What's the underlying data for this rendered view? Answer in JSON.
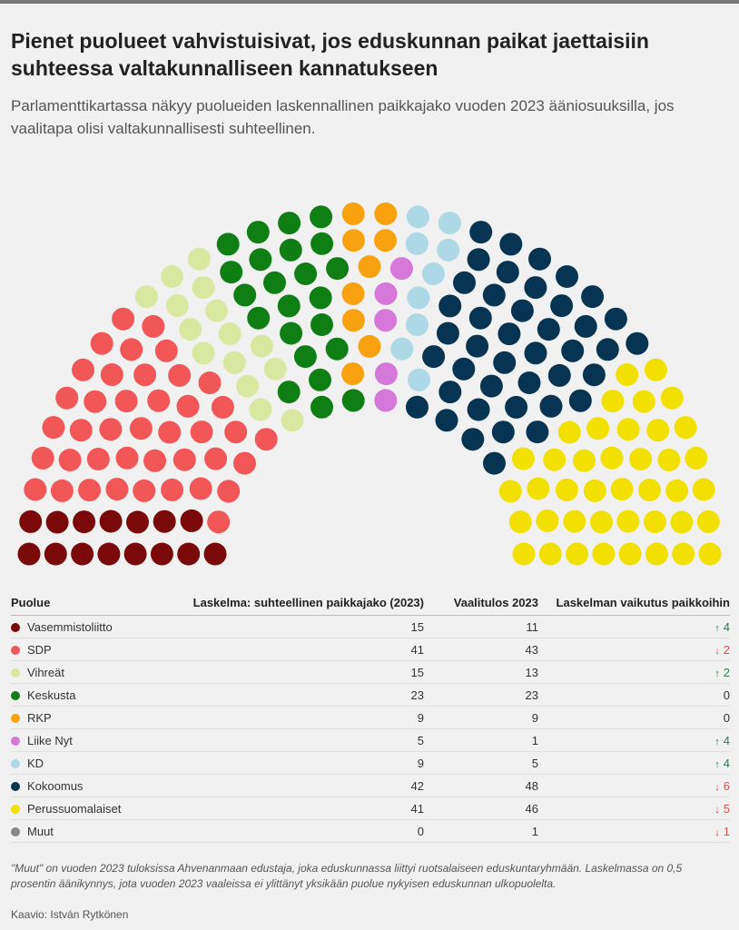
{
  "title": "Pienet puolueet vahvistuisivat, jos eduskunnan paikat jaettaisiin suhteessa valtakunnalliseen kannatukseen",
  "subtitle": "Parlamenttikartassa näkyy puolueiden laskennallinen paikkajako vuoden 2023 ääniosuuksilla, jos vaalitapa olisi valtakunnallisesti suhteellinen.",
  "table": {
    "headers": {
      "party": "Puolue",
      "calculated": "Laskelma: suhteellinen paikkajako (2023)",
      "actual": "Vaalitulos 2023",
      "effect": "Laskelman vaikutus paikkoihin"
    }
  },
  "footnote": "\"Muut\" on vuoden 2023 tuloksissa Ahvenanmaan edustaja, joka eduskunnassa liittyi ruotsalaiseen eduskuntaryhmään. Laskelmassa on 0,5 prosentin äänikynnys, jota vuoden 2023 vaaleissa ei ylittänyt yksikään puolue nykyisen eduskunnan ulkopuolelta.",
  "credit": "Kaavio: István Rytkönen",
  "chart_data": {
    "type": "parliament",
    "total_seats": 200,
    "series": [
      {
        "name": "Vasemmistoliitto",
        "color": "#7a0a0a",
        "calculated": 15,
        "actual": 11,
        "effect": "4",
        "direction": "up"
      },
      {
        "name": "SDP",
        "color": "#f25757",
        "calculated": 41,
        "actual": 43,
        "effect": "2",
        "direction": "down"
      },
      {
        "name": "Vihreät",
        "color": "#d9e8a0",
        "calculated": 15,
        "actual": 13,
        "effect": "2",
        "direction": "up"
      },
      {
        "name": "Keskusta",
        "color": "#0f7f15",
        "calculated": 23,
        "actual": 23,
        "effect": "0",
        "direction": "none"
      },
      {
        "name": "RKP",
        "color": "#f7a20e",
        "calculated": 9,
        "actual": 9,
        "effect": "0",
        "direction": "none"
      },
      {
        "name": "Liike Nyt",
        "color": "#d678d9",
        "calculated": 5,
        "actual": 1,
        "effect": "4",
        "direction": "up"
      },
      {
        "name": "KD",
        "color": "#add8e6",
        "calculated": 9,
        "actual": 5,
        "effect": "4",
        "direction": "up"
      },
      {
        "name": "Kokoomus",
        "color": "#073452",
        "calculated": 42,
        "actual": 48,
        "effect": "6",
        "direction": "down"
      },
      {
        "name": "Perussuomalaiset",
        "color": "#f2e000",
        "calculated": 41,
        "actual": 46,
        "effect": "5",
        "direction": "down"
      },
      {
        "name": "Muut",
        "color": "#888888",
        "calculated": 0,
        "actual": 1,
        "effect": "1",
        "direction": "down"
      }
    ]
  }
}
